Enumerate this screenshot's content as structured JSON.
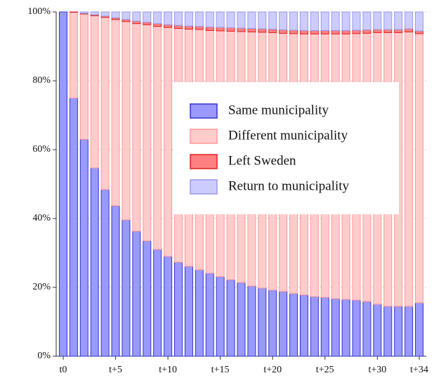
{
  "chart_data": {
    "type": "stacked_bar",
    "categories": [
      "t0",
      null,
      null,
      null,
      null,
      "t+5",
      null,
      null,
      null,
      null,
      "t+10",
      null,
      null,
      null,
      null,
      "t+15",
      null,
      null,
      null,
      null,
      "t+20",
      null,
      null,
      null,
      null,
      "t+25",
      null,
      null,
      null,
      null,
      "t+30",
      null,
      null,
      null,
      "t+34"
    ],
    "series": [
      {
        "name": "Same municipality",
        "color": "#9999ff",
        "stroke": "#3333cc",
        "values": [
          100,
          75,
          63,
          54.7,
          48.4,
          43.7,
          39.6,
          36.3,
          33.5,
          31,
          29,
          27.3,
          26.1,
          25.1,
          24.1,
          23.1,
          22.2,
          21.4,
          20.4,
          19.8,
          19.2,
          18.8,
          18.2,
          17.8,
          17.3,
          17.1,
          16.7,
          16.5,
          16.3,
          15.9,
          15.1,
          14.5,
          14.5,
          14.5,
          15.5
        ]
      },
      {
        "name": "Different municipality",
        "color": "#ffcccc",
        "stroke": "#ff9999",
        "values": [
          0,
          24.9,
          36.4,
          44.2,
          50,
          54.1,
          57.6,
          60.3,
          62.8,
          64.8,
          66.5,
          67.9,
          68.9,
          69.8,
          70.5,
          71.4,
          72.2,
          72.9,
          73.8,
          74.3,
          74.8,
          75,
          75.5,
          75.8,
          76.3,
          76.5,
          76.9,
          77.1,
          77.4,
          77.9,
          78.9,
          79.5,
          79.5,
          79.7,
          78.2
        ]
      },
      {
        "name": "Left Sweden",
        "color": "#ff8080",
        "stroke": "#e02020",
        "values": [
          0,
          0.1,
          0.2,
          0.3,
          0.4,
          0.5,
          0.6,
          0.7,
          0.7,
          0.8,
          0.8,
          0.9,
          0.9,
          0.9,
          1,
          1,
          1,
          1,
          1,
          1,
          1,
          1,
          1,
          1,
          1,
          1,
          1,
          1,
          1,
          1,
          0.9,
          0.9,
          0.9,
          0.9,
          0.8
        ]
      },
      {
        "name": "Return to municipality",
        "color": "#ccccff",
        "stroke": "#9999ee",
        "values": [
          0,
          0,
          0.4,
          0.8,
          1.2,
          1.7,
          2.2,
          2.7,
          3,
          3.4,
          3.7,
          3.9,
          4.1,
          4.2,
          4.4,
          4.5,
          4.6,
          4.7,
          4.8,
          4.9,
          5,
          5.2,
          5.3,
          5.4,
          5.4,
          5.4,
          5.4,
          5.4,
          5.3,
          5.2,
          5.1,
          5.1,
          5.1,
          4.9,
          5.5
        ]
      }
    ],
    "ylim": [
      0,
      100
    ],
    "yticks": [
      {
        "value": 0,
        "label": "0%"
      },
      {
        "value": 20,
        "label": "20%"
      },
      {
        "value": 40,
        "label": "40%"
      },
      {
        "value": 60,
        "label": "60%"
      },
      {
        "value": 80,
        "label": "80%"
      },
      {
        "value": 100,
        "label": "100%"
      }
    ],
    "grid": true
  }
}
